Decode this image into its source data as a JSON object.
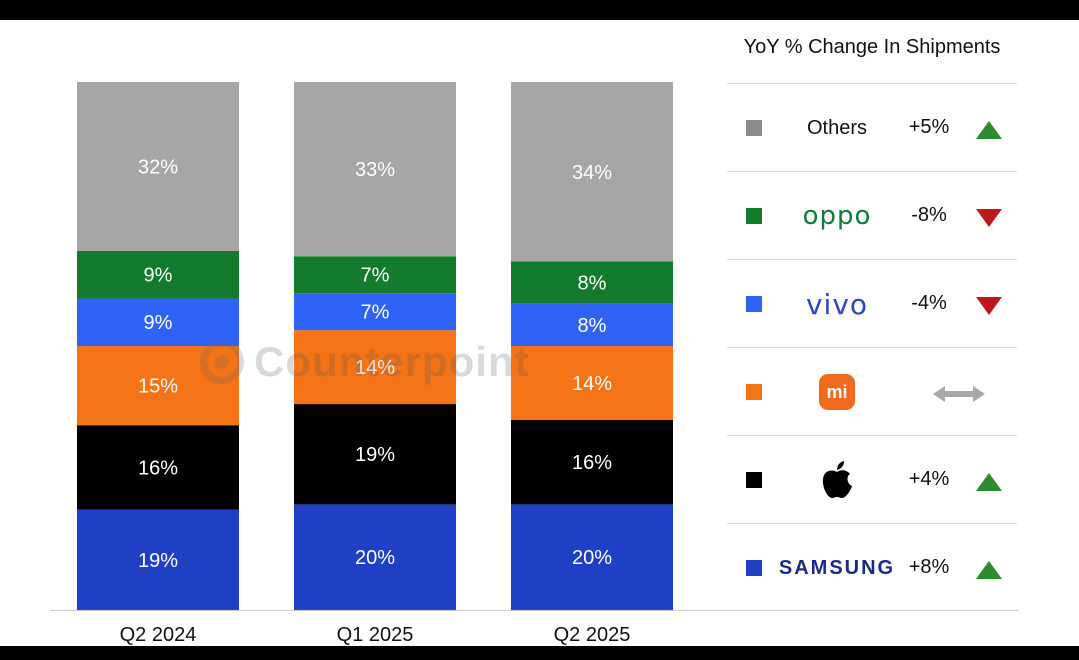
{
  "chart_data": {
    "type": "bar",
    "stacked": true,
    "categories": [
      "Q2 2024",
      "Q1 2025",
      "Q2 2025"
    ],
    "ylim": [
      0,
      100
    ],
    "series": [
      {
        "name": "SAMSUNG",
        "color": "#1f3fc4",
        "values": [
          19,
          20,
          20
        ],
        "labels": [
          "19%",
          "20%",
          "20%"
        ]
      },
      {
        "name": "Apple",
        "color": "#000000",
        "values": [
          16,
          19,
          16
        ],
        "labels": [
          "16%",
          "19%",
          "16%"
        ]
      },
      {
        "name": "Xiaomi",
        "color": "#f57317",
        "values": [
          15,
          14,
          14
        ],
        "labels": [
          "15%",
          "14%",
          "14%"
        ]
      },
      {
        "name": "vivo",
        "color": "#2f63f5",
        "values": [
          9,
          7,
          8
        ],
        "labels": [
          "9%",
          "7%",
          "8%"
        ]
      },
      {
        "name": "oppo",
        "color": "#137b2e",
        "values": [
          9,
          7,
          8
        ],
        "labels": [
          "9%",
          "7%",
          "8%"
        ]
      },
      {
        "name": "Others",
        "color": "#a6a6a6",
        "values": [
          32,
          33,
          34
        ],
        "labels": [
          "32%",
          "33%",
          "34%"
        ]
      }
    ],
    "legend_title": "YoY % Change In Shipments",
    "legend_placement": "right"
  },
  "legend": {
    "title": "YoY % Change In Shipments",
    "rows": [
      {
        "brand": "Others",
        "brand_icon": "text",
        "color": "#8c8c8c",
        "change": "+5%",
        "trend": "up"
      },
      {
        "brand": "oppo",
        "brand_icon": "oppo-logo",
        "color": "#137b2e",
        "change": "-8%",
        "trend": "down"
      },
      {
        "brand": "vivo",
        "brand_icon": "vivo-logo",
        "color": "#2f63f5",
        "change": "-4%",
        "trend": "down"
      },
      {
        "brand": "mi",
        "brand_icon": "xiaomi-logo",
        "color": "#f57317",
        "change": "",
        "trend": "flat"
      },
      {
        "brand": "",
        "brand_icon": "apple-logo",
        "color": "#000000",
        "change": "+4%",
        "trend": "up"
      },
      {
        "brand": "SAMSUNG",
        "brand_icon": "samsung-logo",
        "color": "#1f3fc4",
        "change": "+8%",
        "trend": "up"
      }
    ]
  },
  "watermark": {
    "text": "Counterpoint"
  },
  "colors": {
    "up": "#2e8b2e",
    "down": "#c0171c",
    "flat": "#a8a8a8"
  }
}
